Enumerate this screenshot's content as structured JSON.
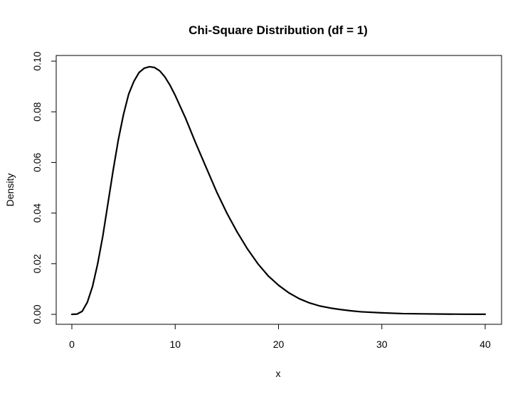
{
  "chart_data": {
    "type": "line",
    "title": "Chi-Square Distribution (df = 1)",
    "xlabel": "x",
    "ylabel": "Density",
    "xlim": [
      0,
      40
    ],
    "ylim": [
      0,
      0.1
    ],
    "x_ticks": [
      0,
      10,
      20,
      30,
      40
    ],
    "x_tick_labels": [
      "0",
      "10",
      "20",
      "30",
      "40"
    ],
    "y_ticks": [
      0,
      0.02,
      0.04,
      0.06,
      0.08,
      0.1
    ],
    "y_tick_labels": [
      "0.00",
      "0.02",
      "0.04",
      "0.06",
      "0.08",
      "0.10"
    ],
    "grid": false,
    "legend": "none",
    "series": [
      {
        "color": "#000000",
        "x": [
          0,
          0.5,
          1,
          1.5,
          2,
          2.5,
          3,
          3.5,
          4,
          4.5,
          5,
          5.5,
          6,
          6.5,
          7,
          7.5,
          8,
          8.5,
          9,
          9.5,
          10,
          11,
          12,
          13,
          14,
          15,
          16,
          17,
          18,
          19,
          20,
          21,
          22,
          23,
          24,
          25,
          26,
          27,
          28,
          30,
          32,
          34,
          36,
          38,
          40
        ],
        "values": [
          0,
          0.0001,
          0.0012,
          0.0048,
          0.011,
          0.02,
          0.031,
          0.044,
          0.057,
          0.069,
          0.079,
          0.087,
          0.092,
          0.0955,
          0.0972,
          0.0978,
          0.0975,
          0.0962,
          0.0938,
          0.0905,
          0.0865,
          0.0775,
          0.0675,
          0.058,
          0.0485,
          0.04,
          0.0325,
          0.0258,
          0.02,
          0.0152,
          0.0115,
          0.0085,
          0.0062,
          0.0045,
          0.0033,
          0.0025,
          0.0019,
          0.0014,
          0.001,
          0.0006,
          0.0003,
          0.0002,
          0.0001,
          5e-05,
          3e-05
        ]
      }
    ]
  }
}
